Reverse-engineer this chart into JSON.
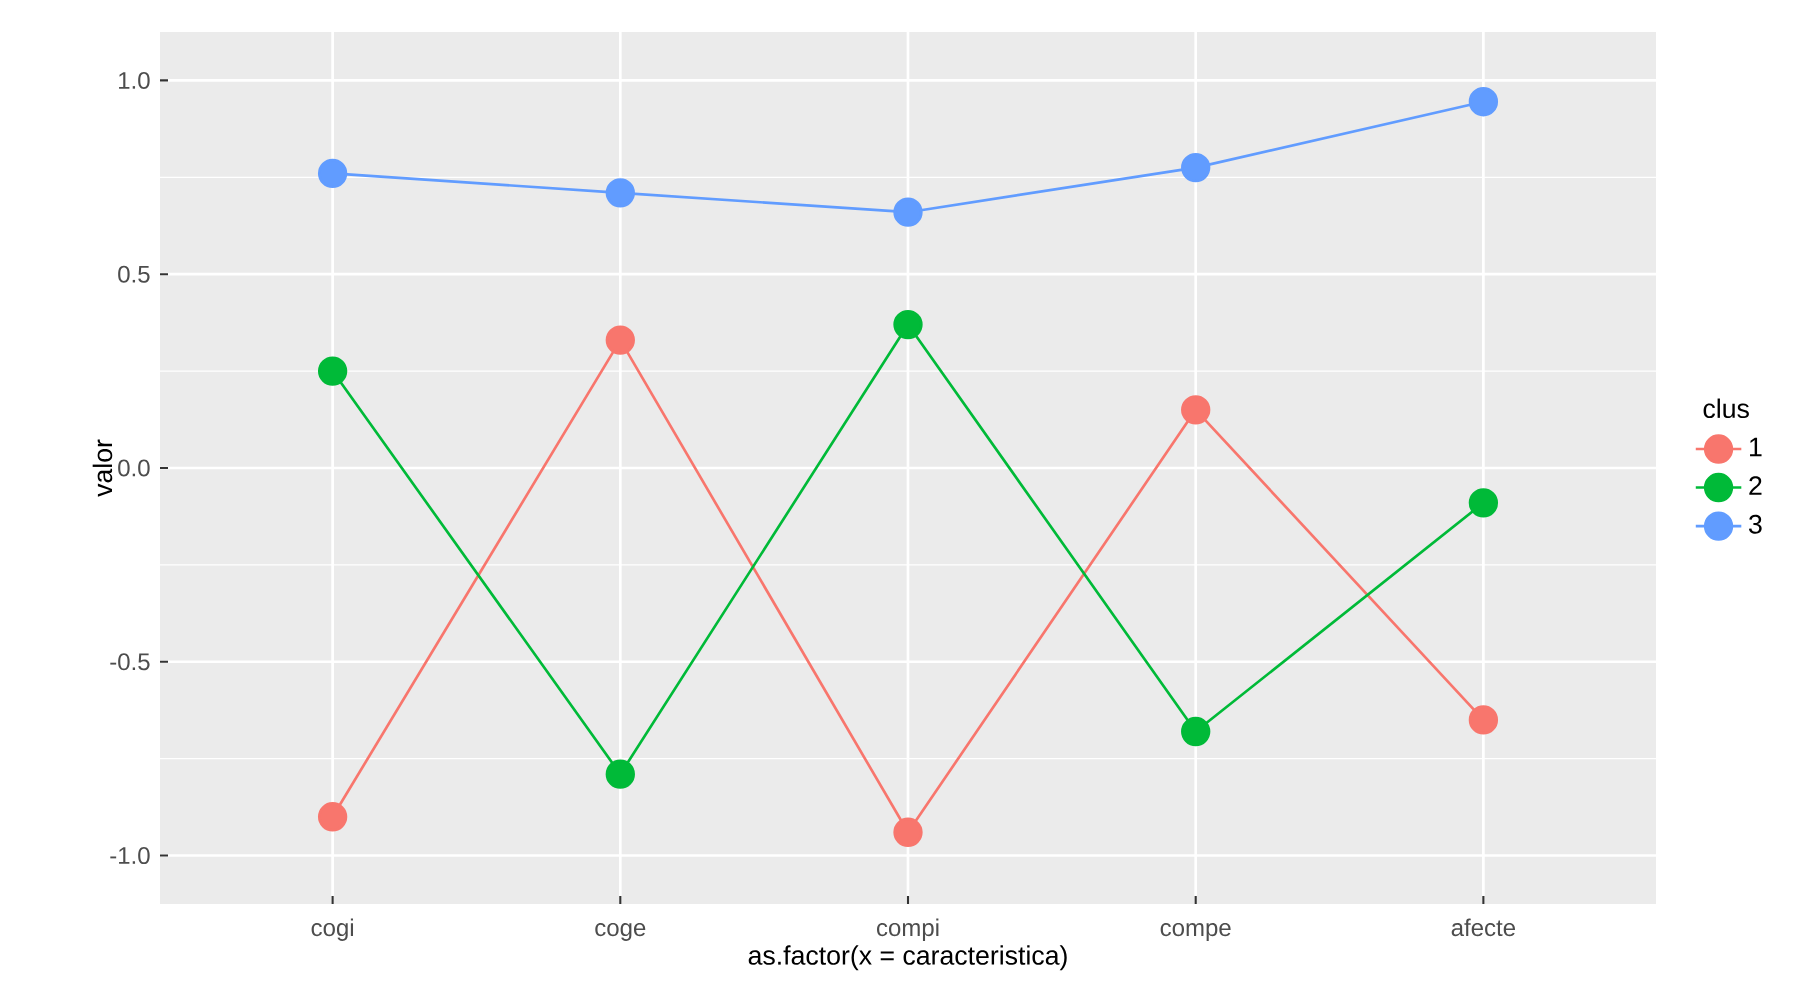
{
  "chart_data": {
    "type": "line",
    "categories": [
      "cogi",
      "coge",
      "compi",
      "compe",
      "afecte"
    ],
    "series": [
      {
        "name": "1",
        "color": "#F8766D",
        "values": [
          -0.9,
          0.33,
          -0.94,
          0.15,
          -0.65
        ]
      },
      {
        "name": "2",
        "color": "#00BA38",
        "values": [
          0.25,
          -0.79,
          0.37,
          -0.68,
          -0.09
        ]
      },
      {
        "name": "3",
        "color": "#619CFF",
        "values": [
          0.76,
          0.71,
          0.66,
          0.775,
          0.945
        ]
      }
    ],
    "xlabel": "as.factor(x = caracteristica)",
    "ylabel": "valor",
    "legend_title": "clus",
    "ylim": [
      -1.125,
      1.125
    ],
    "yticks": [
      {
        "value": -1,
        "label": "-1.0"
      },
      -0.5,
      {
        "value": 0,
        "label": "0.0"
      },
      0.5,
      {
        "value": 1,
        "label": "1.0"
      }
    ],
    "grid": true,
    "legend": "right",
    "marker": "circle",
    "line_style": "solid"
  }
}
